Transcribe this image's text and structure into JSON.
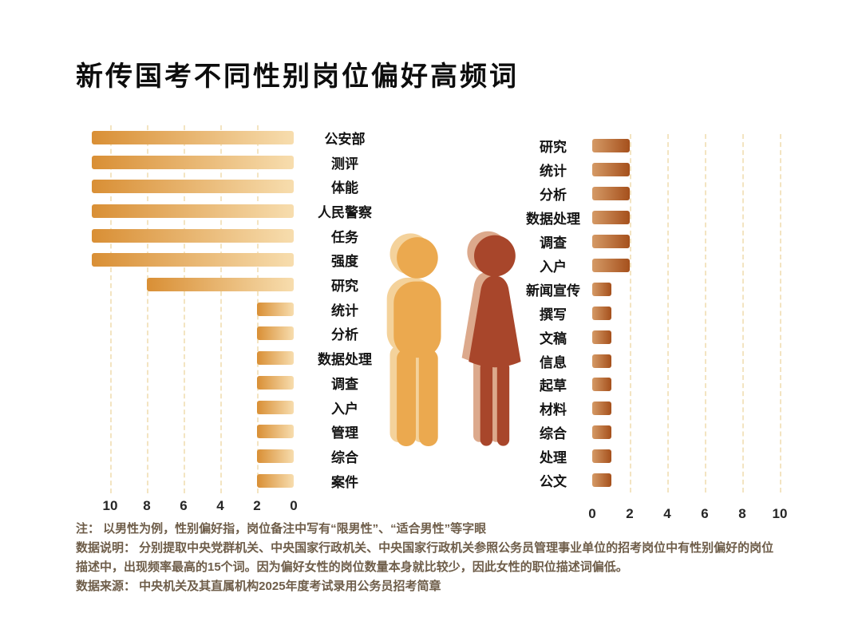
{
  "title": "新传国考不同性别岗位偏好高频词",
  "chart_data": {
    "type": "bar",
    "subtype": "tornado",
    "title": "新传国考不同性别岗位偏好高频词",
    "grid": true,
    "xlim": [
      0,
      11
    ],
    "series": [
      {
        "name": "男性偏好",
        "direction": "left",
        "categories": [
          "公安部",
          "测评",
          "体能",
          "人民警察",
          "任务",
          "强度",
          "研究",
          "统计",
          "分析",
          "数据处理",
          "调查",
          "入户",
          "管理",
          "综合",
          "案件"
        ],
        "values": [
          11,
          11,
          11,
          11,
          11,
          11,
          8,
          2,
          2,
          2,
          2,
          2,
          2,
          2,
          2
        ],
        "axis_ticks": [
          "10",
          "8",
          "6",
          "4",
          "2",
          "0"
        ],
        "bar_color_dark": "#d98f35",
        "bar_color_light": "#f7ddae",
        "figure_color": "#eba94f",
        "figure_shadow_color": "#f4d29b"
      },
      {
        "name": "女性偏好",
        "direction": "right",
        "categories": [
          "研究",
          "统计",
          "分析",
          "数据处理",
          "调查",
          "入户",
          "新闻宣传",
          "撰写",
          "文稿",
          "信息",
          "起草",
          "材料",
          "综合",
          "处理",
          "公文"
        ],
        "values": [
          2,
          2,
          2,
          2,
          2,
          2,
          1,
          1,
          1,
          1,
          1,
          1,
          1,
          1,
          1
        ],
        "axis_ticks": [
          "0",
          "2",
          "4",
          "6",
          "8",
          "10"
        ],
        "bar_color_dark": "#a5501c",
        "bar_color_light": "#d59a66",
        "figure_color": "#a8462b",
        "figure_shadow_color": "#dca98c"
      }
    ]
  },
  "notes": [
    "注：  以男性为例，性别偏好指，岗位备注中写有“限男性”、“适合男性”等字眼",
    "数据说明：  分别提取中央党群机关、中央国家行政机关、中央国家行政机关参照公务员管理事业单位的招考岗位中有性别偏好的岗位描述中，出现频率最高的15个词。因为偏好女性的岗位数量本身就比较少，因此女性的职位描述词偏低。",
    "数据来源：  中央机关及其直属机构2025年度考试录用公务员招考简章"
  ]
}
